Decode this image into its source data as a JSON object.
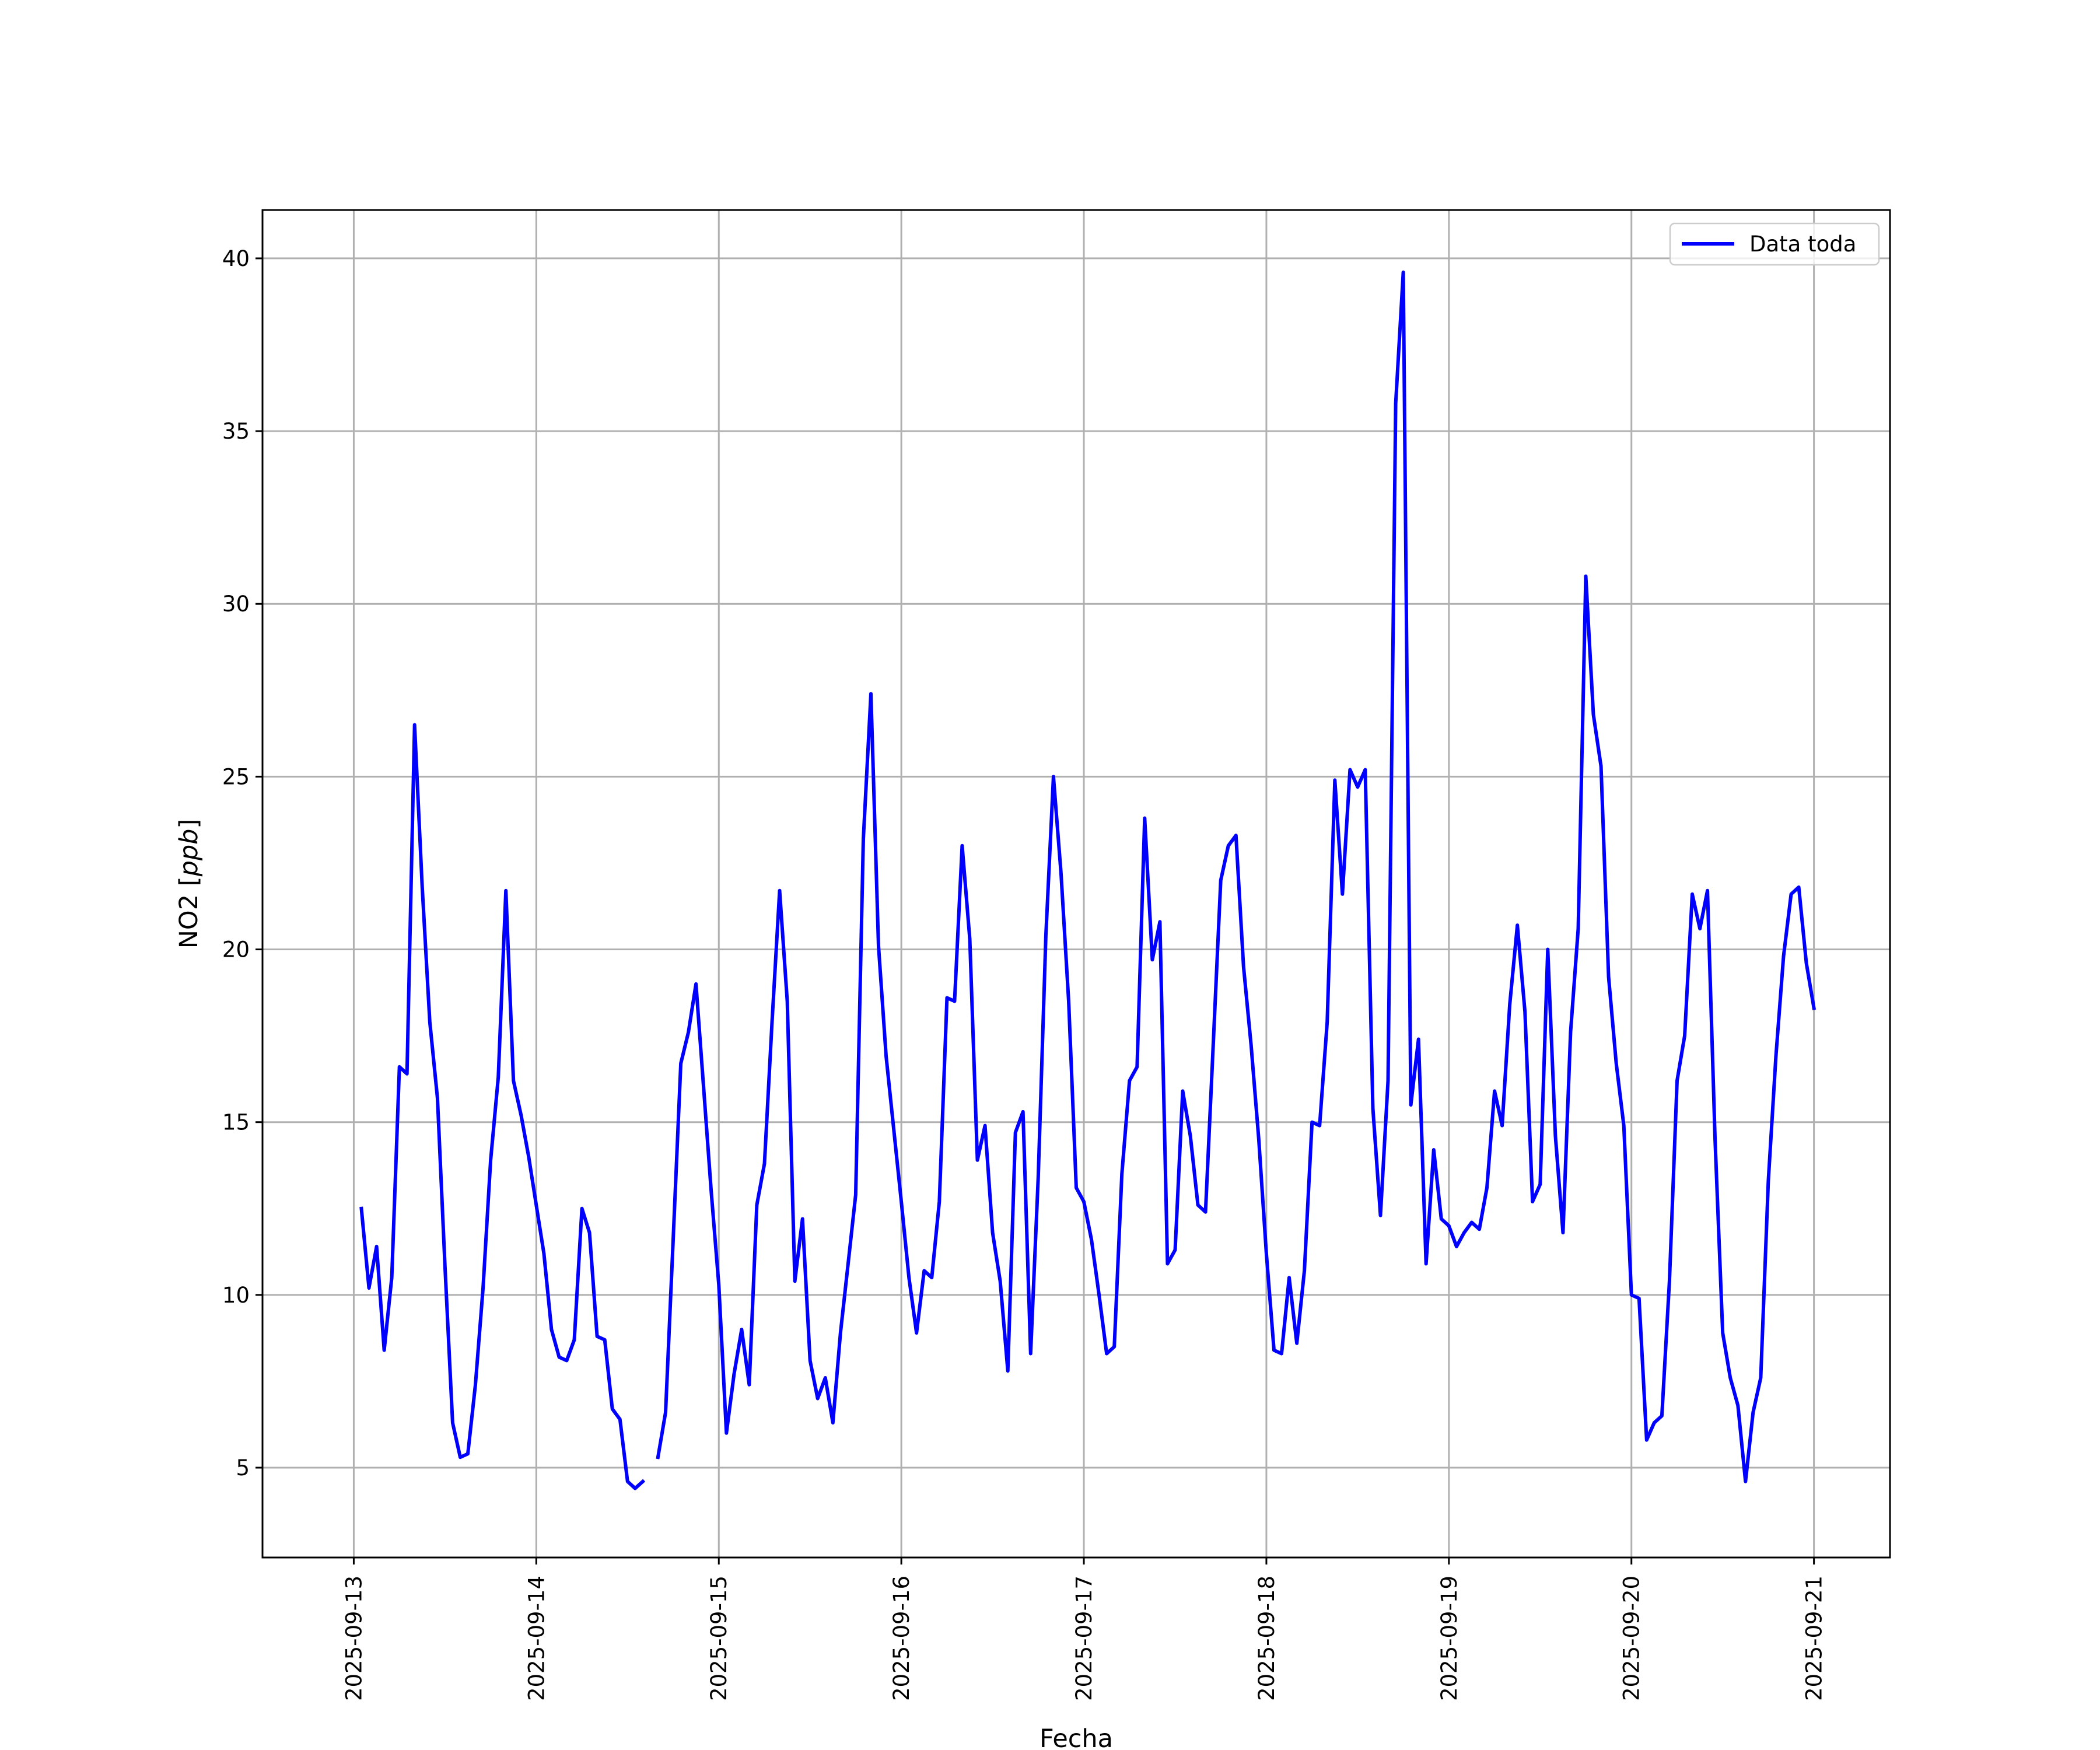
{
  "chart_data": {
    "type": "line",
    "title": "",
    "xlabel": "Fecha",
    "ylabel": "NO2 [ppb]",
    "ylabel_parts": {
      "prefix": "NO2 [",
      "unit": "ppb",
      "suffix": "]"
    },
    "grid": true,
    "legend_position": "top-right",
    "x_ticks": [
      "2025-09-13",
      "2025-09-14",
      "2025-09-15",
      "2025-09-16",
      "2025-09-17",
      "2025-09-18",
      "2025-09-19",
      "2025-09-20",
      "2025-09-21"
    ],
    "y_ticks": [
      "5",
      "10",
      "15",
      "20",
      "25",
      "30",
      "35",
      "40"
    ],
    "xlim": [
      "2025-09-12 12:00",
      "2025-09-21 10:00"
    ],
    "ylim": [
      2.4,
      41.4
    ],
    "series": [
      {
        "name": "Data toda",
        "color": "#0000ff",
        "segments": [
          [
            [
              "2025-09-13 01:00",
              12.5
            ],
            [
              "2025-09-13 02:00",
              10.2
            ],
            [
              "2025-09-13 03:00",
              11.4
            ],
            [
              "2025-09-13 04:00",
              8.4
            ],
            [
              "2025-09-13 05:00",
              10.5
            ],
            [
              "2025-09-13 06:00",
              16.6
            ],
            [
              "2025-09-13 07:00",
              16.4
            ],
            [
              "2025-09-13 08:00",
              26.5
            ],
            [
              "2025-09-13 09:00",
              21.8
            ],
            [
              "2025-09-13 10:00",
              17.9
            ],
            [
              "2025-09-13 11:00",
              15.7
            ],
            [
              "2025-09-13 12:00",
              10.8
            ],
            [
              "2025-09-13 13:00",
              6.3
            ],
            [
              "2025-09-13 14:00",
              5.3
            ],
            [
              "2025-09-13 15:00",
              5.4
            ],
            [
              "2025-09-13 16:00",
              7.4
            ],
            [
              "2025-09-13 17:00",
              10.2
            ],
            [
              "2025-09-13 18:00",
              13.9
            ],
            [
              "2025-09-13 19:00",
              16.3
            ],
            [
              "2025-09-13 20:00",
              21.7
            ],
            [
              "2025-09-13 21:00",
              16.2
            ],
            [
              "2025-09-13 22:00",
              15.2
            ],
            [
              "2025-09-13 23:00",
              14.0
            ],
            [
              "2025-09-14 00:00",
              12.6
            ],
            [
              "2025-09-14 01:00",
              11.2
            ],
            [
              "2025-09-14 02:00",
              9.0
            ],
            [
              "2025-09-14 03:00",
              8.2
            ],
            [
              "2025-09-14 04:00",
              8.1
            ],
            [
              "2025-09-14 05:00",
              8.7
            ],
            [
              "2025-09-14 06:00",
              12.5
            ],
            [
              "2025-09-14 07:00",
              11.8
            ],
            [
              "2025-09-14 08:00",
              8.8
            ],
            [
              "2025-09-14 09:00",
              8.7
            ],
            [
              "2025-09-14 10:00",
              6.7
            ],
            [
              "2025-09-14 11:00",
              6.4
            ],
            [
              "2025-09-14 12:00",
              4.6
            ],
            [
              "2025-09-14 13:00",
              4.4
            ],
            [
              "2025-09-14 14:00",
              4.6
            ]
          ],
          [
            [
              "2025-09-14 16:00",
              5.3
            ],
            [
              "2025-09-14 17:00",
              6.6
            ],
            [
              "2025-09-14 18:00",
              11.6
            ],
            [
              "2025-09-14 19:00",
              16.7
            ],
            [
              "2025-09-14 20:00",
              17.6
            ],
            [
              "2025-09-14 21:00",
              19.0
            ],
            [
              "2025-09-14 22:00",
              16.0
            ],
            [
              "2025-09-14 23:00",
              13.0
            ],
            [
              "2025-09-15 00:00",
              10.3
            ],
            [
              "2025-09-15 01:00",
              6.0
            ],
            [
              "2025-09-15 02:00",
              7.7
            ],
            [
              "2025-09-15 03:00",
              9.0
            ],
            [
              "2025-09-15 04:00",
              7.4
            ],
            [
              "2025-09-15 05:00",
              12.6
            ],
            [
              "2025-09-15 06:00",
              13.8
            ],
            [
              "2025-09-15 07:00",
              17.9
            ],
            [
              "2025-09-15 08:00",
              21.7
            ],
            [
              "2025-09-15 09:00",
              18.5
            ],
            [
              "2025-09-15 10:00",
              10.4
            ],
            [
              "2025-09-15 11:00",
              12.2
            ],
            [
              "2025-09-15 12:00",
              8.1
            ],
            [
              "2025-09-15 13:00",
              7.0
            ],
            [
              "2025-09-15 14:00",
              7.6
            ],
            [
              "2025-09-15 15:00",
              6.3
            ],
            [
              "2025-09-15 16:00",
              8.9
            ],
            [
              "2025-09-15 17:00",
              10.9
            ],
            [
              "2025-09-15 18:00",
              12.9
            ],
            [
              "2025-09-15 19:00",
              23.2
            ],
            [
              "2025-09-15 20:00",
              27.4
            ],
            [
              "2025-09-15 21:00",
              20.1
            ],
            [
              "2025-09-15 22:00",
              16.9
            ],
            [
              "2025-09-15 23:00",
              14.8
            ],
            [
              "2025-09-16 00:00",
              12.7
            ],
            [
              "2025-09-16 01:00",
              10.5
            ],
            [
              "2025-09-16 02:00",
              8.9
            ],
            [
              "2025-09-16 03:00",
              10.7
            ],
            [
              "2025-09-16 04:00",
              10.5
            ],
            [
              "2025-09-16 05:00",
              12.7
            ],
            [
              "2025-09-16 06:00",
              18.6
            ],
            [
              "2025-09-16 07:00",
              18.5
            ],
            [
              "2025-09-16 08:00",
              23.0
            ],
            [
              "2025-09-16 09:00",
              20.3
            ],
            [
              "2025-09-16 10:00",
              13.9
            ],
            [
              "2025-09-16 11:00",
              14.9
            ],
            [
              "2025-09-16 12:00",
              11.8
            ],
            [
              "2025-09-16 13:00",
              10.4
            ],
            [
              "2025-09-16 14:00",
              7.8
            ],
            [
              "2025-09-16 15:00",
              14.7
            ],
            [
              "2025-09-16 16:00",
              15.3
            ],
            [
              "2025-09-16 17:00",
              8.3
            ],
            [
              "2025-09-16 18:00",
              13.4
            ],
            [
              "2025-09-16 19:00",
              20.4
            ],
            [
              "2025-09-16 20:00",
              25.0
            ],
            [
              "2025-09-16 21:00",
              22.2
            ],
            [
              "2025-09-16 22:00",
              18.5
            ],
            [
              "2025-09-16 23:00",
              13.1
            ],
            [
              "2025-09-17 00:00",
              12.7
            ],
            [
              "2025-09-17 01:00",
              11.6
            ],
            [
              "2025-09-17 02:00",
              10.0
            ],
            [
              "2025-09-17 03:00",
              8.3
            ],
            [
              "2025-09-17 04:00",
              8.5
            ],
            [
              "2025-09-17 05:00",
              13.5
            ],
            [
              "2025-09-17 06:00",
              16.2
            ],
            [
              "2025-09-17 07:00",
              16.6
            ],
            [
              "2025-09-17 08:00",
              23.8
            ],
            [
              "2025-09-17 09:00",
              19.7
            ],
            [
              "2025-09-17 10:00",
              20.8
            ],
            [
              "2025-09-17 11:00",
              10.9
            ],
            [
              "2025-09-17 12:00",
              11.3
            ],
            [
              "2025-09-17 13:00",
              15.9
            ],
            [
              "2025-09-17 14:00",
              14.6
            ],
            [
              "2025-09-17 15:00",
              12.6
            ],
            [
              "2025-09-17 16:00",
              12.4
            ],
            [
              "2025-09-17 17:00",
              17.2
            ],
            [
              "2025-09-17 18:00",
              22.0
            ],
            [
              "2025-09-17 19:00",
              23.0
            ],
            [
              "2025-09-17 20:00",
              23.3
            ],
            [
              "2025-09-17 21:00",
              19.5
            ],
            [
              "2025-09-17 22:00",
              17.2
            ],
            [
              "2025-09-17 23:00",
              14.5
            ],
            [
              "2025-09-18 00:00",
              11.2
            ],
            [
              "2025-09-18 01:00",
              8.4
            ],
            [
              "2025-09-18 02:00",
              8.3
            ],
            [
              "2025-09-18 03:00",
              10.5
            ],
            [
              "2025-09-18 04:00",
              8.6
            ],
            [
              "2025-09-18 05:00",
              10.7
            ],
            [
              "2025-09-18 06:00",
              15.0
            ],
            [
              "2025-09-18 07:00",
              14.9
            ],
            [
              "2025-09-18 08:00",
              17.9
            ],
            [
              "2025-09-18 09:00",
              24.9
            ],
            [
              "2025-09-18 10:00",
              21.6
            ],
            [
              "2025-09-18 11:00",
              25.2
            ],
            [
              "2025-09-18 12:00",
              24.7
            ],
            [
              "2025-09-18 13:00",
              25.2
            ],
            [
              "2025-09-18 14:00",
              15.4
            ],
            [
              "2025-09-18 15:00",
              12.3
            ],
            [
              "2025-09-18 16:00",
              16.2
            ],
            [
              "2025-09-18 17:00",
              35.8
            ],
            [
              "2025-09-18 18:00",
              39.6
            ],
            [
              "2025-09-18 19:00",
              15.5
            ],
            [
              "2025-09-18 20:00",
              17.4
            ],
            [
              "2025-09-18 21:00",
              10.9
            ],
            [
              "2025-09-18 22:00",
              14.2
            ],
            [
              "2025-09-18 23:00",
              12.2
            ],
            [
              "2025-09-19 00:00",
              12.0
            ],
            [
              "2025-09-19 01:00",
              11.4
            ],
            [
              "2025-09-19 02:00",
              11.8
            ],
            [
              "2025-09-19 03:00",
              12.1
            ],
            [
              "2025-09-19 04:00",
              11.9
            ],
            [
              "2025-09-19 05:00",
              13.1
            ],
            [
              "2025-09-19 06:00",
              15.9
            ],
            [
              "2025-09-19 07:00",
              14.9
            ],
            [
              "2025-09-19 08:00",
              18.4
            ],
            [
              "2025-09-19 09:00",
              20.7
            ],
            [
              "2025-09-19 10:00",
              18.2
            ],
            [
              "2025-09-19 11:00",
              12.7
            ],
            [
              "2025-09-19 12:00",
              13.2
            ],
            [
              "2025-09-19 13:00",
              20.0
            ],
            [
              "2025-09-19 14:00",
              14.6
            ],
            [
              "2025-09-19 15:00",
              11.8
            ],
            [
              "2025-09-19 16:00",
              17.6
            ],
            [
              "2025-09-19 17:00",
              20.6
            ],
            [
              "2025-09-19 18:00",
              30.8
            ],
            [
              "2025-09-19 19:00",
              26.8
            ],
            [
              "2025-09-19 20:00",
              25.3
            ],
            [
              "2025-09-19 21:00",
              19.2
            ],
            [
              "2025-09-19 22:00",
              16.7
            ],
            [
              "2025-09-19 23:00",
              14.9
            ],
            [
              "2025-09-20 00:00",
              10.0
            ],
            [
              "2025-09-20 01:00",
              9.9
            ],
            [
              "2025-09-20 02:00",
              5.8
            ],
            [
              "2025-09-20 03:00",
              6.3
            ],
            [
              "2025-09-20 04:00",
              6.5
            ],
            [
              "2025-09-20 05:00",
              10.4
            ],
            [
              "2025-09-20 06:00",
              16.2
            ],
            [
              "2025-09-20 07:00",
              17.5
            ],
            [
              "2025-09-20 08:00",
              21.6
            ],
            [
              "2025-09-20 09:00",
              20.6
            ],
            [
              "2025-09-20 10:00",
              21.7
            ],
            [
              "2025-09-20 11:00",
              14.5
            ],
            [
              "2025-09-20 12:00",
              8.9
            ],
            [
              "2025-09-20 13:00",
              7.6
            ],
            [
              "2025-09-20 14:00",
              6.8
            ],
            [
              "2025-09-20 15:00",
              4.6
            ],
            [
              "2025-09-20 16:00",
              6.6
            ],
            [
              "2025-09-20 17:00",
              7.6
            ],
            [
              "2025-09-20 18:00",
              13.3
            ],
            [
              "2025-09-20 19:00",
              16.9
            ],
            [
              "2025-09-20 20:00",
              19.8
            ],
            [
              "2025-09-20 21:00",
              21.6
            ],
            [
              "2025-09-20 22:00",
              21.8
            ],
            [
              "2025-09-20 23:00",
              19.6
            ],
            [
              "2025-09-21 00:00",
              18.3
            ]
          ]
        ]
      }
    ],
    "colors": {
      "line": "#0000ff",
      "grid": "#b0b0b0",
      "axes": "#000000",
      "background": "#ffffff"
    }
  }
}
